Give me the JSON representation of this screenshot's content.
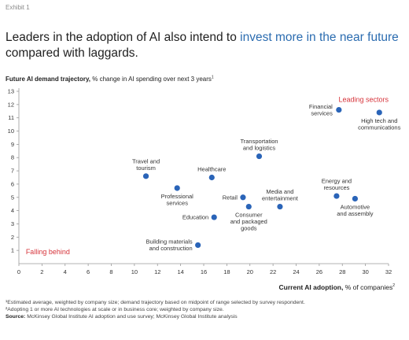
{
  "exhibit_label": "Exhibit 1",
  "headline": {
    "part1": "Leaders in the adoption of AI also intend to ",
    "accent": "invest more in the near future",
    "part2": " compared with laggards."
  },
  "y_axis_label": {
    "bold": "Future AI demand trajectory,",
    "rest": " % change in AI spending over next 3 years",
    "sup": "1"
  },
  "x_axis_label": {
    "bold": "Current AI adoption,",
    "rest": " % of companies",
    "sup": "2"
  },
  "corner_labels": {
    "leading": "Leading sectors",
    "behind": "Falling behind"
  },
  "footnotes": {
    "note1": "¹Estimated average, weighted by company size; demand trajectory based on midpoint of range selected by survey respondent.",
    "note2": "²Adopting 1 or more AI technologies at scale or in business core; weighted by company size.",
    "source_label": "Source:",
    "source_text": " McKinsey Global Institute AI adoption and use survey; McKinsey Global Institute analysis"
  },
  "colors": {
    "accent": "#2b6cb0",
    "point": "#2a64b8",
    "highlight": "#d6333a",
    "axis": "#9a9a9a"
  },
  "chart_data": {
    "type": "scatter",
    "xlim": [
      0,
      32
    ],
    "ylim": [
      0,
      13
    ],
    "xticks": [
      0,
      2,
      4,
      6,
      8,
      10,
      12,
      14,
      16,
      18,
      20,
      22,
      24,
      26,
      28,
      30,
      32
    ],
    "yticks": [
      1,
      2,
      3,
      4,
      5,
      6,
      7,
      8,
      9,
      10,
      11,
      12,
      13
    ],
    "grid": false,
    "points": [
      {
        "label": [
          "Financial",
          "services"
        ],
        "x": 27.7,
        "y": 11.6,
        "anchor": "end"
      },
      {
        "label": [
          "High tech and",
          "communications"
        ],
        "x": 31.2,
        "y": 11.4,
        "anchor": "middle-below"
      },
      {
        "label": [
          "Transportation",
          "and logistics"
        ],
        "x": 20.8,
        "y": 8.1,
        "anchor": "middle-above"
      },
      {
        "label": [
          "Travel and",
          "tourism"
        ],
        "x": 11.0,
        "y": 6.6,
        "anchor": "middle-above"
      },
      {
        "label": [
          "Healthcare"
        ],
        "x": 16.7,
        "y": 6.5,
        "anchor": "middle-above"
      },
      {
        "label": [
          "Professional",
          "services"
        ],
        "x": 13.7,
        "y": 5.7,
        "anchor": "middle-below"
      },
      {
        "label": [
          "Retail"
        ],
        "x": 19.4,
        "y": 5.0,
        "anchor": "start-left"
      },
      {
        "label": [
          "Consumer",
          "and packaged",
          "goods"
        ],
        "x": 19.9,
        "y": 4.3,
        "anchor": "middle-below"
      },
      {
        "label": [
          "Media and",
          "entertainment"
        ],
        "x": 22.6,
        "y": 4.3,
        "anchor": "middle-above"
      },
      {
        "label": [
          "Energy and",
          "resources"
        ],
        "x": 27.5,
        "y": 5.1,
        "anchor": "middle-above"
      },
      {
        "label": [
          "Automotive",
          "and assembly"
        ],
        "x": 29.1,
        "y": 4.9,
        "anchor": "middle-below"
      },
      {
        "label": [
          "Education"
        ],
        "x": 16.9,
        "y": 3.5,
        "anchor": "start-left"
      },
      {
        "label": [
          "Building materials",
          "and construction"
        ],
        "x": 15.5,
        "y": 1.4,
        "anchor": "start-left"
      }
    ]
  }
}
